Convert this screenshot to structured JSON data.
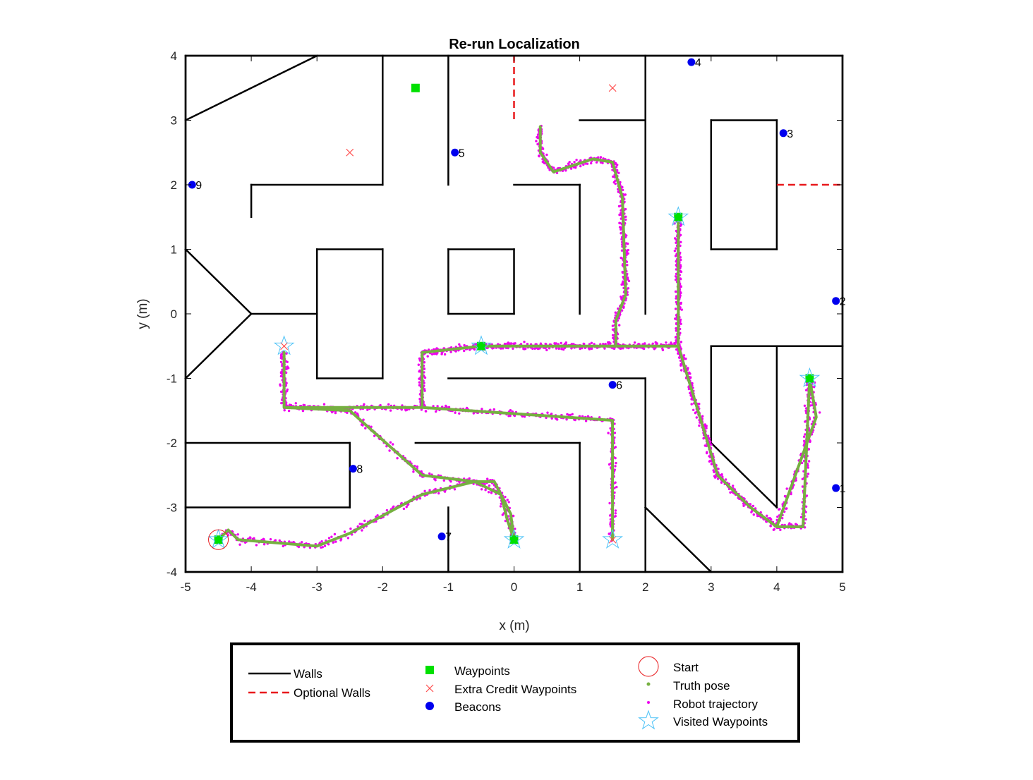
{
  "chart_data": {
    "type": "scatter",
    "title": "Re-run Localization",
    "xlabel": "x (m)",
    "ylabel": "y (m)",
    "xlim": [
      -5,
      5
    ],
    "ylim": [
      -4,
      4
    ],
    "xticks": [
      "-5",
      "-4",
      "-3",
      "-2",
      "-1",
      "0",
      "1",
      "2",
      "3",
      "4",
      "5"
    ],
    "yticks": [
      "4",
      "3",
      "2",
      "1",
      "0",
      "-1",
      "-2",
      "-3",
      "-4"
    ],
    "grid": false,
    "legend_placement": "below",
    "colors": {
      "walls": "#000000",
      "optional_walls": "#e8191c",
      "waypoints": "#00e000",
      "extra_credit": "#ff4d4d",
      "beacons": "#0000ee",
      "start": "#e8191c",
      "truth_pose": "#76b041",
      "robot_trajectory": "#ee00ee",
      "visited": "#4fc3f7"
    },
    "walls": [
      [
        [
          -5,
          4
        ],
        [
          5,
          4
        ]
      ],
      [
        [
          5,
          4
        ],
        [
          5,
          -4
        ]
      ],
      [
        [
          5,
          -4
        ],
        [
          -5,
          -4
        ]
      ],
      [
        [
          -5,
          -4
        ],
        [
          -5,
          4
        ]
      ],
      [
        [
          -5,
          3
        ],
        [
          -3,
          4
        ]
      ],
      [
        [
          -2,
          4
        ],
        [
          -2,
          2
        ]
      ],
      [
        [
          -2,
          2
        ],
        [
          -4,
          2
        ]
      ],
      [
        [
          -4,
          2
        ],
        [
          -4,
          1.5
        ]
      ],
      [
        [
          -1,
          4
        ],
        [
          -1,
          2
        ]
      ],
      [
        [
          0,
          2
        ],
        [
          1,
          2
        ]
      ],
      [
        [
          1,
          2
        ],
        [
          1,
          0
        ]
      ],
      [
        [
          1,
          3
        ],
        [
          2,
          3
        ]
      ],
      [
        [
          2,
          4
        ],
        [
          2,
          0
        ]
      ],
      [
        [
          3,
          3
        ],
        [
          4,
          3
        ]
      ],
      [
        [
          4,
          3
        ],
        [
          4,
          1
        ]
      ],
      [
        [
          4,
          1
        ],
        [
          3,
          1
        ]
      ],
      [
        [
          3,
          1
        ],
        [
          3,
          3
        ]
      ],
      [
        [
          -5,
          1
        ],
        [
          -4,
          0
        ]
      ],
      [
        [
          -4,
          0
        ],
        [
          -5,
          -1
        ]
      ],
      [
        [
          -4,
          0
        ],
        [
          -3,
          0
        ]
      ],
      [
        [
          -3,
          1
        ],
        [
          -2,
          1
        ]
      ],
      [
        [
          -2,
          1
        ],
        [
          -2,
          -1
        ]
      ],
      [
        [
          -2,
          -1
        ],
        [
          -3,
          -1
        ]
      ],
      [
        [
          -3,
          -1
        ],
        [
          -3,
          1
        ]
      ],
      [
        [
          -1,
          1
        ],
        [
          0,
          1
        ]
      ],
      [
        [
          0,
          1
        ],
        [
          0,
          0
        ]
      ],
      [
        [
          0,
          0
        ],
        [
          -1,
          0
        ]
      ],
      [
        [
          -1,
          0
        ],
        [
          -1,
          1
        ]
      ],
      [
        [
          -1,
          -1
        ],
        [
          2,
          -1
        ]
      ],
      [
        [
          2,
          -1
        ],
        [
          2,
          -4
        ]
      ],
      [
        [
          3,
          -0.5
        ],
        [
          5,
          -0.5
        ]
      ],
      [
        [
          3,
          -0.5
        ],
        [
          3,
          -2
        ]
      ],
      [
        [
          3,
          -2
        ],
        [
          4,
          -3
        ]
      ],
      [
        [
          4,
          -3
        ],
        [
          4,
          -0.5
        ]
      ],
      [
        [
          -5,
          -2
        ],
        [
          -2.5,
          -2
        ]
      ],
      [
        [
          -2.5,
          -2
        ],
        [
          -2.5,
          -3
        ]
      ],
      [
        [
          -2.5,
          -3
        ],
        [
          -5,
          -3
        ]
      ],
      [
        [
          -1.5,
          -2
        ],
        [
          1,
          -2
        ]
      ],
      [
        [
          1,
          -2
        ],
        [
          1,
          -4
        ]
      ],
      [
        [
          -1,
          -3
        ],
        [
          -1,
          -4
        ]
      ],
      [
        [
          2,
          -3
        ],
        [
          3,
          -4
        ]
      ]
    ],
    "optional_walls": [
      [
        [
          0,
          4
        ],
        [
          0,
          3
        ]
      ],
      [
        [
          4,
          2
        ],
        [
          5,
          2
        ]
      ]
    ],
    "waypoints": [
      [
        -1.5,
        3.5
      ],
      [
        2.5,
        1.5
      ],
      [
        -0.5,
        -0.5
      ],
      [
        4.5,
        -1
      ],
      [
        0,
        -3.5
      ],
      [
        -4.5,
        -3.5
      ]
    ],
    "extra_credit_waypoints": [
      [
        -2.5,
        2.5
      ],
      [
        1.5,
        3.5
      ],
      [
        -3.5,
        -0.5
      ],
      [
        1.5,
        -3.5
      ]
    ],
    "beacons": [
      {
        "label": "1",
        "x": 4.9,
        "y": -2.7
      },
      {
        "label": "2",
        "x": 4.9,
        "y": 0.2
      },
      {
        "label": "3",
        "x": 4.1,
        "y": 2.8
      },
      {
        "label": "4",
        "x": 2.7,
        "y": 3.9
      },
      {
        "label": "5",
        "x": -0.9,
        "y": 2.5
      },
      {
        "label": "6",
        "x": 1.5,
        "y": -1.1
      },
      {
        "label": "7",
        "x": -1.1,
        "y": -3.45
      },
      {
        "label": "8",
        "x": -2.45,
        "y": -2.4
      },
      {
        "label": "9",
        "x": -4.9,
        "y": 2.0
      }
    ],
    "start": [
      -4.5,
      -3.5
    ],
    "visited_waypoints": [
      [
        -4.5,
        -3.5
      ],
      [
        -3.5,
        -0.5
      ],
      [
        -0.5,
        -0.5
      ],
      [
        0,
        -3.5
      ],
      [
        1.5,
        -3.5
      ],
      [
        2.5,
        1.5
      ],
      [
        4.5,
        -1
      ]
    ],
    "truth_pose_path": [
      [
        -4.5,
        -3.5
      ],
      [
        -4.35,
        -3.35
      ],
      [
        -4.2,
        -3.5
      ],
      [
        -3.0,
        -3.6
      ],
      [
        -2.5,
        -3.4
      ],
      [
        -1.4,
        -2.8
      ],
      [
        -0.6,
        -2.6
      ],
      [
        -0.4,
        -2.7
      ],
      [
        -0.2,
        -2.8
      ],
      [
        -0.1,
        -3.2
      ],
      [
        0.0,
        -3.5
      ],
      [
        -0.05,
        -3.1
      ],
      [
        -0.3,
        -2.6
      ],
      [
        -0.6,
        -2.6
      ],
      [
        -1.4,
        -2.5
      ],
      [
        -2.5,
        -1.5
      ],
      [
        -3.5,
        -1.45
      ],
      [
        -3.5,
        -0.6
      ],
      [
        -3.5,
        -1.45
      ],
      [
        -1.4,
        -1.45
      ],
      [
        -1.4,
        -0.6
      ],
      [
        -0.5,
        -0.5
      ],
      [
        2.5,
        -0.5
      ],
      [
        2.5,
        1.5
      ],
      [
        2.5,
        -0.5
      ],
      [
        3.1,
        -2.5
      ],
      [
        3.6,
        -3.0
      ],
      [
        4.0,
        -3.3
      ],
      [
        4.4,
        -3.3
      ],
      [
        4.5,
        -1.0
      ],
      [
        4.6,
        -1.6
      ],
      [
        4.0,
        -3.3
      ],
      [
        3.6,
        -3.0
      ],
      [
        3.1,
        -2.5
      ],
      [
        2.5,
        -0.5
      ],
      [
        1.55,
        -0.5
      ],
      [
        1.55,
        -0.1
      ],
      [
        1.7,
        0.3
      ],
      [
        1.65,
        1.8
      ],
      [
        1.5,
        2.35
      ],
      [
        1.2,
        2.4
      ],
      [
        0.6,
        2.2
      ],
      [
        0.4,
        2.5
      ],
      [
        0.4,
        2.9
      ],
      [
        0.4,
        2.5
      ],
      [
        0.6,
        2.2
      ],
      [
        1.2,
        2.4
      ],
      [
        1.5,
        2.35
      ],
      [
        1.65,
        1.8
      ],
      [
        1.7,
        0.3
      ],
      [
        1.55,
        -0.1
      ],
      [
        1.55,
        -0.5
      ],
      [
        -0.5,
        -0.5
      ],
      [
        -1.4,
        -0.6
      ],
      [
        -1.4,
        -1.45
      ],
      [
        1.5,
        -1.65
      ],
      [
        1.5,
        -3.5
      ]
    ]
  },
  "legend": {
    "col1": [
      "Walls",
      "Optional Walls"
    ],
    "col2": [
      "Waypoints",
      "Extra Credit Waypoints",
      "Beacons"
    ],
    "col3": [
      "Start",
      "Truth pose",
      "Robot trajectory",
      "Visited Waypoints"
    ]
  }
}
